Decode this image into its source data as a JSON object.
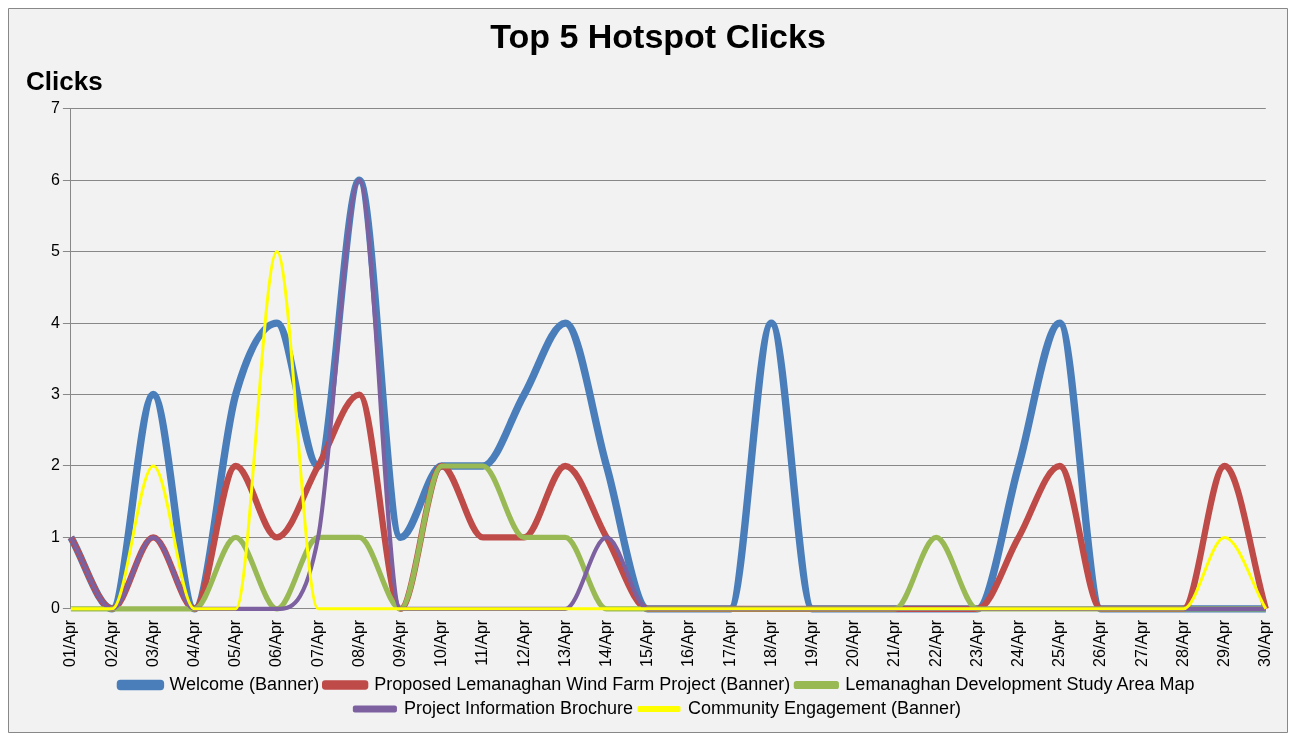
{
  "chart_data": {
    "type": "line",
    "title": "Top 5 Hotspot Clicks",
    "ylabel": "Clicks",
    "categories": [
      "01/Apr",
      "02/Apr",
      "03/Apr",
      "04/Apr",
      "05/Apr",
      "06/Apr",
      "07/Apr",
      "08/Apr",
      "09/Apr",
      "10/Apr",
      "11/Apr",
      "12/Apr",
      "13/Apr",
      "14/Apr",
      "15/Apr",
      "16/Apr",
      "17/Apr",
      "18/Apr",
      "19/Apr",
      "20/Apr",
      "21/Apr",
      "22/Apr",
      "23/Apr",
      "24/Apr",
      "25/Apr",
      "26/Apr",
      "27/Apr",
      "28/Apr",
      "29/Apr",
      "30/Apr"
    ],
    "series": [
      {
        "name": "Welcome (Banner)",
        "color": "#4a7ebb",
        "values": [
          1,
          0,
          3,
          0,
          3,
          4,
          2,
          6,
          1,
          2,
          2,
          3,
          4,
          2,
          0,
          0,
          0,
          4,
          0,
          0,
          0,
          0,
          0,
          2,
          4,
          0,
          0,
          0,
          0,
          0
        ]
      },
      {
        "name": "Proposed Lemanaghan Wind Farm Project (Banner)",
        "color": "#be4b48",
        "values": [
          1,
          0,
          1,
          0,
          2,
          1,
          2,
          3,
          0,
          2,
          1,
          1,
          2,
          1,
          0,
          0,
          0,
          0,
          0,
          0,
          0,
          0,
          0,
          1,
          2,
          0,
          0,
          0,
          2,
          0
        ]
      },
      {
        "name": "Lemanaghan Development Study Area Map",
        "color": "#98b954",
        "values": [
          0,
          0,
          0,
          0,
          1,
          0,
          1,
          1,
          0,
          2,
          2,
          1,
          1,
          0,
          0,
          0,
          0,
          0,
          0,
          0,
          0,
          1,
          0,
          0,
          0,
          0,
          0,
          0,
          0,
          0
        ]
      },
      {
        "name": "Project Information Brochure",
        "color": "#7d60a0",
        "values": [
          1,
          0,
          1,
          0,
          0,
          0,
          1,
          6,
          0,
          0,
          0,
          0,
          0,
          1,
          0,
          0,
          0,
          0,
          0,
          0,
          0,
          0,
          0,
          0,
          0,
          0,
          0,
          0,
          0,
          0
        ]
      },
      {
        "name": "Community Engagement (Banner)",
        "color": "#ffff00",
        "values": [
          0,
          0,
          2,
          0,
          0,
          5,
          0,
          0,
          0,
          0,
          0,
          0,
          0,
          0,
          0,
          0,
          0,
          0,
          0,
          0,
          0,
          0,
          0,
          0,
          0,
          0,
          0,
          0,
          1,
          0
        ]
      }
    ],
    "ylim": [
      0,
      7
    ],
    "yticks": [
      0,
      1,
      2,
      3,
      4,
      5,
      6,
      7
    ],
    "grid": "y",
    "legend": "bottom",
    "marker": "none",
    "line_style": "solid"
  }
}
